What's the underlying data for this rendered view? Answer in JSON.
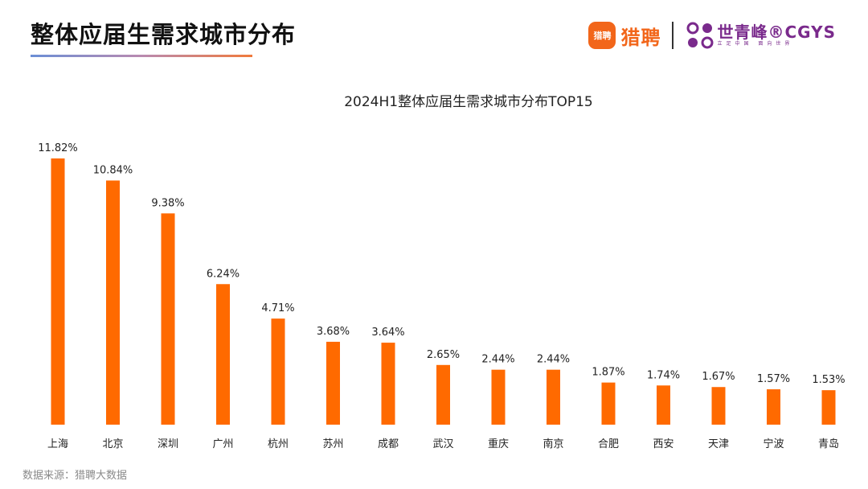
{
  "page": {
    "title": "整体应届生需求城市分布",
    "source": "数据来源：猎聘大数据"
  },
  "brand": {
    "liepin_badge": "猎聘",
    "liepin_name": "猎聘",
    "cgys_name": "世青峰®CGYS",
    "cgys_sub": "立足中国 面向世界"
  },
  "colors": {
    "bar": "#ff6a00",
    "liepin": "#f2661a",
    "cgys": "#7a2a8c"
  },
  "chart_data": {
    "type": "bar",
    "title": "2024H1整体应届生需求城市分布TOP15",
    "xlabel": "",
    "ylabel": "",
    "categories": [
      "上海",
      "北京",
      "深圳",
      "广州",
      "杭州",
      "苏州",
      "成都",
      "武汉",
      "重庆",
      "南京",
      "合肥",
      "西安",
      "天津",
      "宁波",
      "青岛"
    ],
    "values": [
      11.82,
      10.84,
      9.38,
      6.24,
      4.71,
      3.68,
      3.64,
      2.65,
      2.44,
      2.44,
      1.87,
      1.74,
      1.67,
      1.57,
      1.53
    ],
    "value_labels": [
      "11.82%",
      "10.84%",
      "9.38%",
      "6.24%",
      "4.71%",
      "3.68%",
      "3.64%",
      "2.65%",
      "2.44%",
      "2.44%",
      "1.87%",
      "1.74%",
      "1.67%",
      "1.57%",
      "1.53%"
    ],
    "ylim": [
      0,
      11.82
    ],
    "grid": false,
    "legend": "none"
  }
}
